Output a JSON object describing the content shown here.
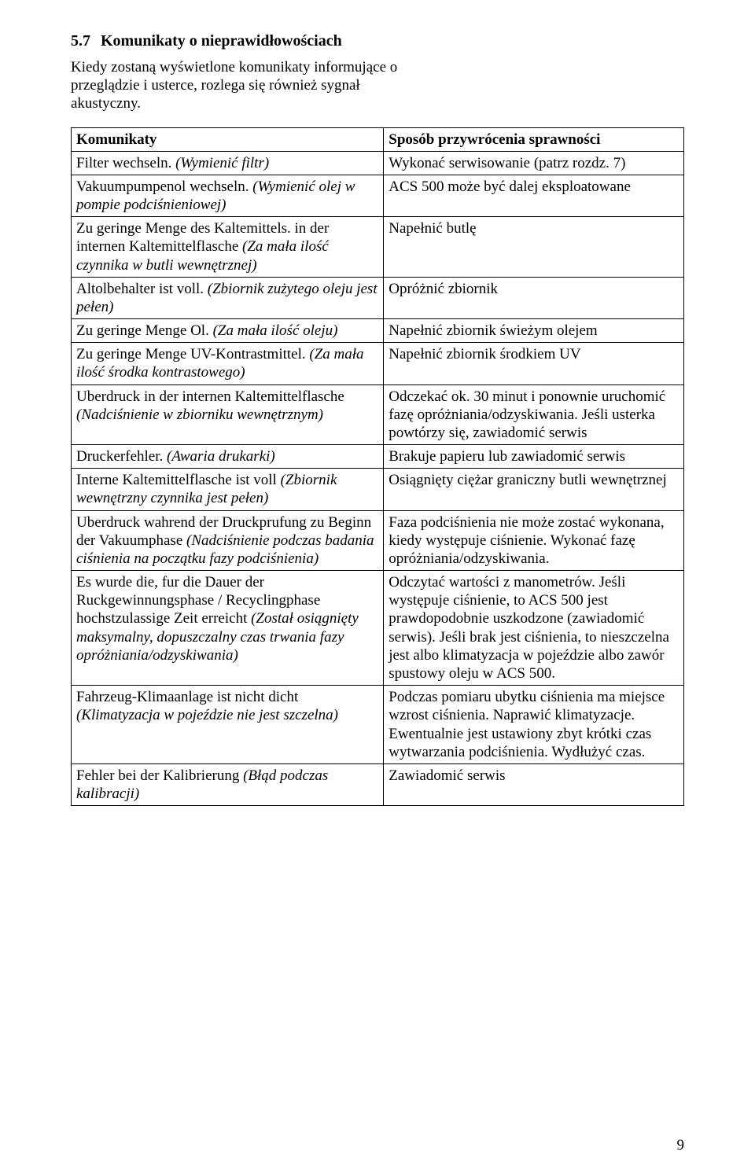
{
  "heading": {
    "number": "5.7",
    "title": "Komunikaty o nieprawidłowościach"
  },
  "intro": "Kiedy zostaną wyświetlone komunikaty informujące o przeglądzie i usterce, rozlega się również sygnał akustyczny.",
  "table": {
    "header": {
      "left": "Komunikaty",
      "right": "Sposób przywrócenia sprawności"
    },
    "rows": [
      {
        "left_html": "Filter wechseln. <span class='italic'>(Wymienić filtr)</span>",
        "right": "Wykonać serwisowanie (patrz rozdz. 7)"
      },
      {
        "left_html": "Vakuumpumpenol wechseln. <span class='italic'>(Wymienić olej w pompie podciśnieniowej)</span>",
        "right": "ACS 500 może być dalej eksploatowane"
      },
      {
        "left_html": "Zu geringe Menge des Kaltemittels. in der internen Kaltemittelflasche <span class='italic'>(Za mała ilość czynnika w butli wewnętrznej)</span>",
        "right": "Napełnić butlę"
      },
      {
        "left_html": "Altolbehalter ist voll. <span class='italic'>(Zbiornik zużytego oleju jest pełen)</span>",
        "right": "Opróżnić zbiornik"
      },
      {
        "left_html": "Zu geringe Menge Ol. <span class='italic'>(Za mała ilość oleju)</span>",
        "right": "Napełnić zbiornik świeżym olejem"
      },
      {
        "left_html": "Zu geringe Menge UV-Kontrastmittel. <span class='italic'>(Za mała ilość środka kontrastowego)</span>",
        "right": "Napełnić zbiornik środkiem UV"
      },
      {
        "left_html": "Uberdruck in der internen Kaltemittelflasche <span class='italic'>(Nadciśnienie w zbiorniku wewnętrznym)</span>",
        "right": "Odczekać ok. 30 minut i ponownie uruchomić fazę opróżniania/odzyskiwania. Jeśli usterka powtórzy się, zawiadomić serwis"
      },
      {
        "left_html": "Druckerfehler. <span class='italic'>(Awaria drukarki)</span>",
        "right": "Brakuje papieru lub zawiadomić serwis"
      },
      {
        "left_html": "Interne Kaltemittelflasche ist voll <span class='italic'>(Zbiornik wewnętrzny czynnika jest pełen)</span>",
        "right": "Osiągnięty ciężar graniczny butli wewnętrznej"
      },
      {
        "left_html": "Uberdruck wahrend der Druckprufung zu Beginn der Vakuumphase <span class='italic'>(Nadciśnienie podczas badania ciśnienia na początku fazy podciśnienia)</span>",
        "right": "Faza podciśnienia nie może zostać wykonana, kiedy występuje ciśnienie. Wykonać fazę opróżniania/odzyskiwania."
      },
      {
        "left_html": "Es wurde die, fur die Dauer der Ruckgewinnungsphase / Recyclingphase hochstzulassige Zeit erreicht <span class='italic'>(Został osiągnięty maksymalny, dopuszczalny czas trwania fazy opróżniania/odzyskiwania)</span>",
        "right": "Odczytać wartości z manometrów. Jeśli występuje ciśnienie, to ACS 500 jest prawdopodobnie uszkodzone (zawiadomić serwis). Jeśli brak jest ciśnienia, to nieszczelna jest albo klimatyzacja w pojeździe albo zawór spustowy oleju w ACS 500."
      },
      {
        "left_html": "Fahrzeug-Klimaanlage ist nicht dicht <span class='italic'>(Klimatyzacja w pojeździe nie jest szczelna)</span>",
        "right": "Podczas pomiaru ubytku ciśnienia ma miejsce wzrost ciśnienia. Naprawić klimatyzacje. Ewentualnie jest ustawiony zbyt krótki czas wytwarzania podciśnienia. Wydłużyć czas."
      },
      {
        "left_html": "Fehler bei der Kalibrierung <span class='italic'>(Błąd podczas kalibracji)</span>",
        "right": "Zawiadomić serwis"
      }
    ]
  },
  "page_number": "9"
}
